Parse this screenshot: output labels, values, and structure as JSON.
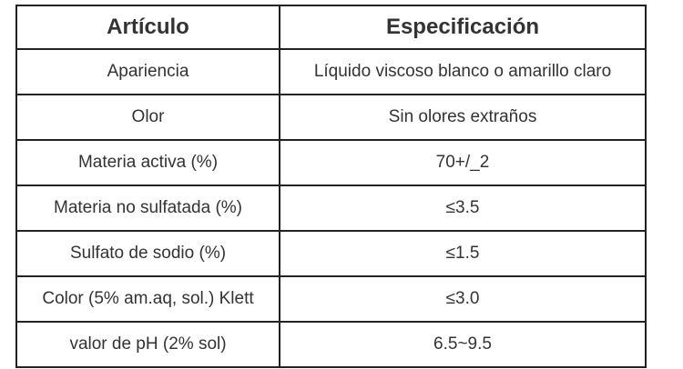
{
  "table": {
    "header": [
      "Artículo",
      "Especificación"
    ],
    "rows": [
      [
        "Apariencia",
        "Líquido viscoso blanco o amarillo claro"
      ],
      [
        "Olor",
        "Sin olores extraños"
      ],
      [
        "Materia activa (%)",
        "70+/_2"
      ],
      [
        "Materia no sulfatada (%)",
        "≤3.5"
      ],
      [
        "Sulfato de sodio (%)",
        "≤1.5"
      ],
      [
        "Color (5% am.aq, sol.) Klett",
        "≤3.0"
      ],
      [
        "valor de pH (2% sol)",
        "6.5~9.5"
      ]
    ]
  }
}
